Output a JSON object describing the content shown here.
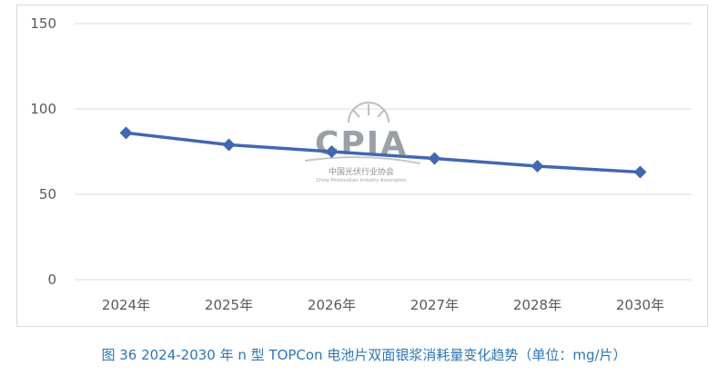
{
  "chart_data": {
    "type": "line",
    "title": "",
    "xlabel": "",
    "ylabel": "",
    "categories": [
      "2024年",
      "2025年",
      "2026年",
      "2027年",
      "2028年",
      "2030年"
    ],
    "series": [
      {
        "values": [
          86,
          79,
          75,
          71,
          66.5,
          63
        ]
      }
    ],
    "ylim": [
      0,
      150
    ],
    "yticks": [
      "0",
      "50",
      "100",
      "150"
    ],
    "grid": true,
    "legend": "none",
    "colors": {
      "line": "#4266b1",
      "grid": "#d9d9d9",
      "axis_text": "#595959"
    }
  },
  "watermark": {
    "logo_text": "CPIA",
    "cn_name": "中国光伏行业协会",
    "en_name": "China Photovoltaic Industry Association"
  },
  "caption": "图 36    2024-2030 年 n 型 TOPCon 电池片双面银浆消耗量变化趋势（单位：mg/片）"
}
